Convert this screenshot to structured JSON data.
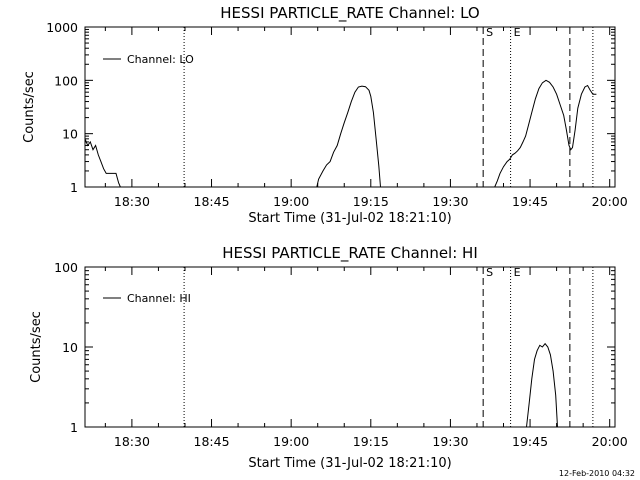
{
  "stamp": "12-Feb-2010 04:32",
  "chart_data": [
    {
      "type": "line",
      "title": "HESSI PARTICLE_RATE Channel: LO",
      "xlabel": "Start Time (31-Jul-02 18:21:10)",
      "ylabel": "Counts/sec",
      "yscale": "log",
      "ylim": [
        1,
        1000
      ],
      "x_range": [
        "18:21:10",
        "20:01:00"
      ],
      "x_ticks": [
        "18:30",
        "18:45",
        "19:00",
        "19:15",
        "19:30",
        "19:45",
        "20:00"
      ],
      "y_ticks": [
        "1",
        "10",
        "100",
        "1000"
      ],
      "legend": "top-left",
      "series": [
        {
          "name": "Channel: LO",
          "segments": [
            [
              [
                "18:21:10",
                8
              ],
              [
                "18:21:40",
                6
              ],
              [
                "18:22:10",
                7
              ],
              [
                "18:22:40",
                5
              ],
              [
                "18:23:10",
                6
              ],
              [
                "18:23:40",
                4
              ],
              [
                "18:24:10",
                3
              ],
              [
                "18:24:40",
                2.2
              ],
              [
                "18:25:10",
                1.8
              ],
              [
                "18:25:40",
                1.8
              ],
              [
                "18:26:10",
                1.8
              ],
              [
                "18:26:40",
                1.8
              ],
              [
                "18:27:00",
                1.8
              ],
              [
                "18:27:30",
                1.2
              ],
              [
                "18:27:50",
                1
              ]
            ],
            [
              [
                "19:04:50",
                1
              ],
              [
                "19:05:10",
                1.4
              ],
              [
                "19:06:00",
                2
              ],
              [
                "19:06:40",
                2.6
              ],
              [
                "19:07:20",
                3
              ],
              [
                "19:08:00",
                4.5
              ],
              [
                "19:08:40",
                6
              ],
              [
                "19:09:20",
                10
              ],
              [
                "19:10:00",
                16
              ],
              [
                "19:10:40",
                25
              ],
              [
                "19:11:20",
                40
              ],
              [
                "19:12:00",
                60
              ],
              [
                "19:12:40",
                75
              ],
              [
                "19:13:20",
                78
              ],
              [
                "19:14:00",
                76
              ],
              [
                "19:14:40",
                65
              ],
              [
                "19:15:00",
                50
              ],
              [
                "19:15:30",
                25
              ],
              [
                "19:16:00",
                8
              ],
              [
                "19:16:30",
                2.5
              ],
              [
                "19:16:50",
                1
              ]
            ],
            [
              [
                "19:38:20",
                1
              ],
              [
                "19:38:50",
                1.3
              ],
              [
                "19:39:20",
                1.8
              ],
              [
                "19:40:00",
                2.4
              ],
              [
                "19:40:40",
                3
              ],
              [
                "19:41:10",
                3.3
              ],
              [
                "19:41:40",
                4
              ],
              [
                "19:42:10",
                4.3
              ],
              [
                "19:42:40",
                4.8
              ],
              [
                "19:43:10",
                5.5
              ],
              [
                "19:43:40",
                7
              ],
              [
                "19:44:10",
                9
              ],
              [
                "19:44:40",
                14
              ],
              [
                "19:45:20",
                25
              ],
              [
                "19:46:00",
                45
              ],
              [
                "19:46:40",
                70
              ],
              [
                "19:47:20",
                90
              ],
              [
                "19:48:00",
                100
              ],
              [
                "19:48:40",
                92
              ],
              [
                "19:49:20",
                75
              ],
              [
                "19:50:00",
                55
              ],
              [
                "19:50:40",
                35
              ],
              [
                "19:51:20",
                22
              ],
              [
                "19:51:50",
                12
              ],
              [
                "19:52:20",
                6
              ],
              [
                "19:52:40",
                5
              ],
              [
                "19:53:00",
                5.5
              ],
              [
                "19:53:30",
                12
              ],
              [
                "19:54:00",
                30
              ],
              [
                "19:54:40",
                55
              ],
              [
                "19:55:20",
                75
              ],
              [
                "19:55:50",
                80
              ],
              [
                "19:56:20",
                65
              ],
              [
                "19:56:50",
                55
              ],
              [
                "19:57:30",
                55
              ]
            ]
          ]
        }
      ],
      "vlines": [
        {
          "x": "18:39:50",
          "style": "dotted",
          "label": ""
        },
        {
          "x": "19:36:10",
          "style": "dashed",
          "label": "S"
        },
        {
          "x": "19:41:20",
          "style": "dotted",
          "label": "E"
        },
        {
          "x": "19:52:30",
          "style": "dashed",
          "label": ""
        },
        {
          "x": "19:56:50",
          "style": "dotted",
          "label": ""
        }
      ]
    },
    {
      "type": "line",
      "title": "HESSI PARTICLE_RATE Channel: HI",
      "xlabel": "Start Time (31-Jul-02 18:21:10)",
      "ylabel": "Counts/sec",
      "yscale": "log",
      "ylim": [
        1,
        100
      ],
      "x_range": [
        "18:21:10",
        "20:01:00"
      ],
      "x_ticks": [
        "18:30",
        "18:45",
        "19:00",
        "19:15",
        "19:30",
        "19:45",
        "20:00"
      ],
      "y_ticks": [
        "1",
        "10",
        "100"
      ],
      "legend": "top-left",
      "series": [
        {
          "name": "Channel: HI",
          "segments": [
            [
              [
                "19:44:20",
                1
              ],
              [
                "19:44:50",
                2
              ],
              [
                "19:45:20",
                4
              ],
              [
                "19:45:50",
                7
              ],
              [
                "19:46:20",
                9
              ],
              [
                "19:46:50",
                10.5
              ],
              [
                "19:47:20",
                10
              ],
              [
                "19:47:50",
                11
              ],
              [
                "19:48:20",
                10
              ],
              [
                "19:48:50",
                8
              ],
              [
                "19:49:20",
                5
              ],
              [
                "19:49:50",
                2.5
              ],
              [
                "19:50:10",
                1
              ]
            ]
          ]
        }
      ],
      "vlines": [
        {
          "x": "18:39:50",
          "style": "dotted",
          "label": ""
        },
        {
          "x": "19:36:10",
          "style": "dashed",
          "label": "S"
        },
        {
          "x": "19:41:20",
          "style": "dotted",
          "label": "E"
        },
        {
          "x": "19:52:30",
          "style": "dashed",
          "label": ""
        },
        {
          "x": "19:56:50",
          "style": "dotted",
          "label": ""
        }
      ]
    }
  ]
}
